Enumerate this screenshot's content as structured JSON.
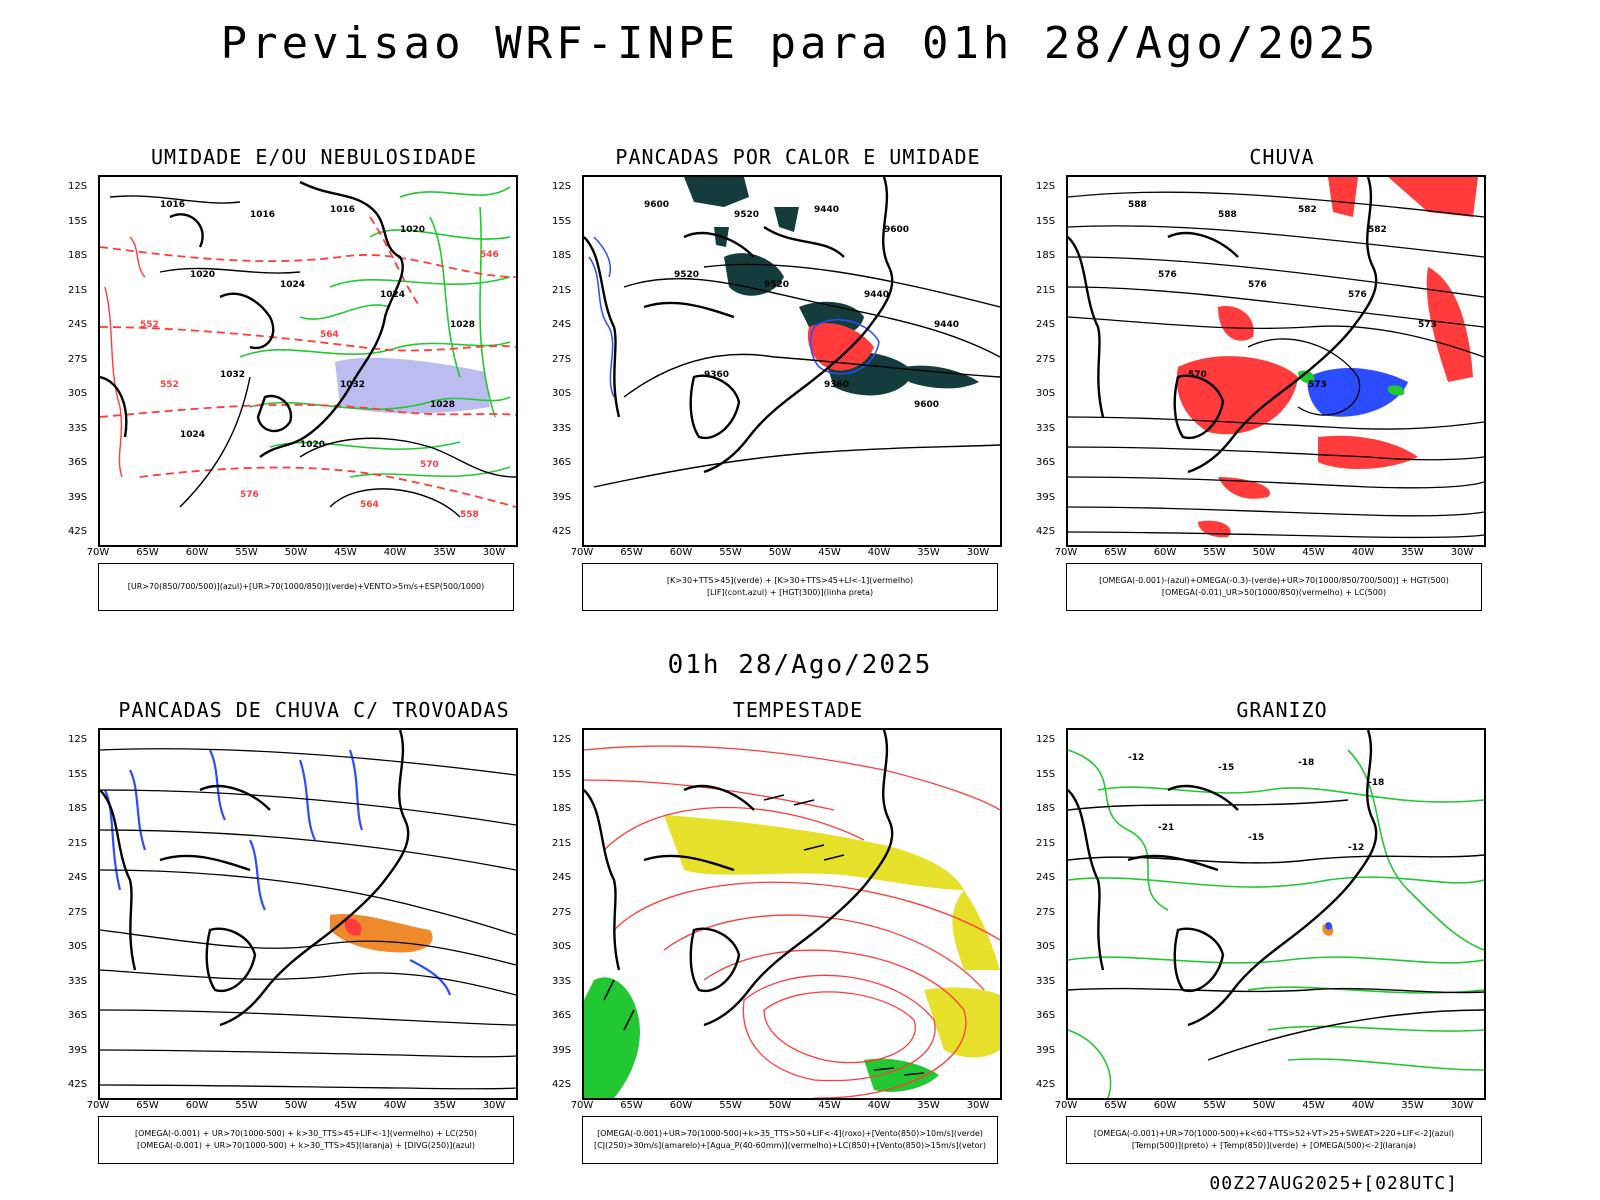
{
  "title": "Previsao WRF-INPE  para 01h 28/Ago/2025",
  "mid_title": "01h 28/Ago/2025",
  "footer": "00Z27AUG2025+[028UTC]",
  "axes": {
    "lat_labels": [
      "12S",
      "15S",
      "18S",
      "21S",
      "24S",
      "27S",
      "30S",
      "33S",
      "36S",
      "39S",
      "42S"
    ],
    "lon_labels": [
      "70W",
      "65W",
      "60W",
      "55W",
      "50W",
      "45W",
      "40W",
      "35W",
      "30W"
    ]
  },
  "colors": {
    "red": "#ff3b3b",
    "green": "#22c832",
    "blue": "#2b4cff",
    "yellow": "#e6e02a",
    "orange": "#ee8a2c",
    "dark_teal": "#143c3c",
    "lavender": "#b0b0ee"
  },
  "panels": [
    {
      "title": "UMIDADE E/OU NEBULOSIDADE",
      "legend": [
        "[UR>70(850/700/500)](azul)+[UR>70(1000/850)](verde)+VENTO>5m/s+ESP(500/1000)"
      ],
      "labels": [
        "1016",
        "1016",
        "1016",
        "1020",
        "1020",
        "1024",
        "1024",
        "1028",
        "1032",
        "1032",
        "1028",
        "1024",
        "1020",
        "570",
        "576",
        "564",
        "558",
        "552",
        "552",
        "546",
        "564"
      ]
    },
    {
      "title": "PANCADAS POR CALOR E UMIDADE",
      "legend": [
        "[K>30+TTS>45](verde) + [K>30+TTS>45+LI<-1](vermelho)",
        "[LIF](cont.azul) + [HGT(300)](linha preta)"
      ],
      "labels": [
        "9600",
        "9520",
        "9440",
        "9600",
        "9520",
        "9520",
        "9440",
        "9440",
        "9360",
        "9360",
        "9600"
      ]
    },
    {
      "title": "CHUVA",
      "legend": [
        "[OMEGA(-0.001)-(azul)+OMEGA(-0.3)-(verde)+UR>70(1000/850/700/500)] + HGT(500)",
        "[OMEGA(-0.01)_UR>50(1000/850)(vermelho) + LC(500)"
      ],
      "labels": [
        "588",
        "588",
        "582",
        "582",
        "576",
        "576",
        "576",
        "573",
        "570",
        "573"
      ]
    },
    {
      "title": "PANCADAS DE CHUVA C/ TROVOADAS",
      "legend": [
        "[OMEGA(-0.001) + UR>70(1000-500) + k>30_TTS>45+LIF<-1](vermelho) + LC(250)",
        "[OMEGA(-0.001) + UR>70(1000-500) + k>30_TTS>45](laranja) + [DIVG(250)](azul)"
      ],
      "labels": []
    },
    {
      "title": "TEMPESTADE",
      "legend": [
        "[OMEGA(-0.001)+UR>70(1000-500)+k>35_TTS>50+LIF<-4](roxo)+[Vento(850)>10m/s](verde)",
        "[CJ(250)>30m/s](amarelo)+[Agua_P(40-60mm)](vermelho)+LC(850)+[Vento(850)>15m/s](vetor)"
      ],
      "labels": []
    },
    {
      "title": "GRANIZO",
      "legend": [
        "[OMEGA(-0.001)+UR>70(1000-500)+k<60+TTS>52+VT>25+SWEAT>220+LIF<-2](azul)",
        "[Temp(500)](preto) + [Temp(850)](verde) + [OMEGA(500)<-2](laranja)"
      ],
      "labels": [
        "-12",
        "-15",
        "-18",
        "-18",
        "-21",
        "-15",
        "-12"
      ]
    }
  ]
}
